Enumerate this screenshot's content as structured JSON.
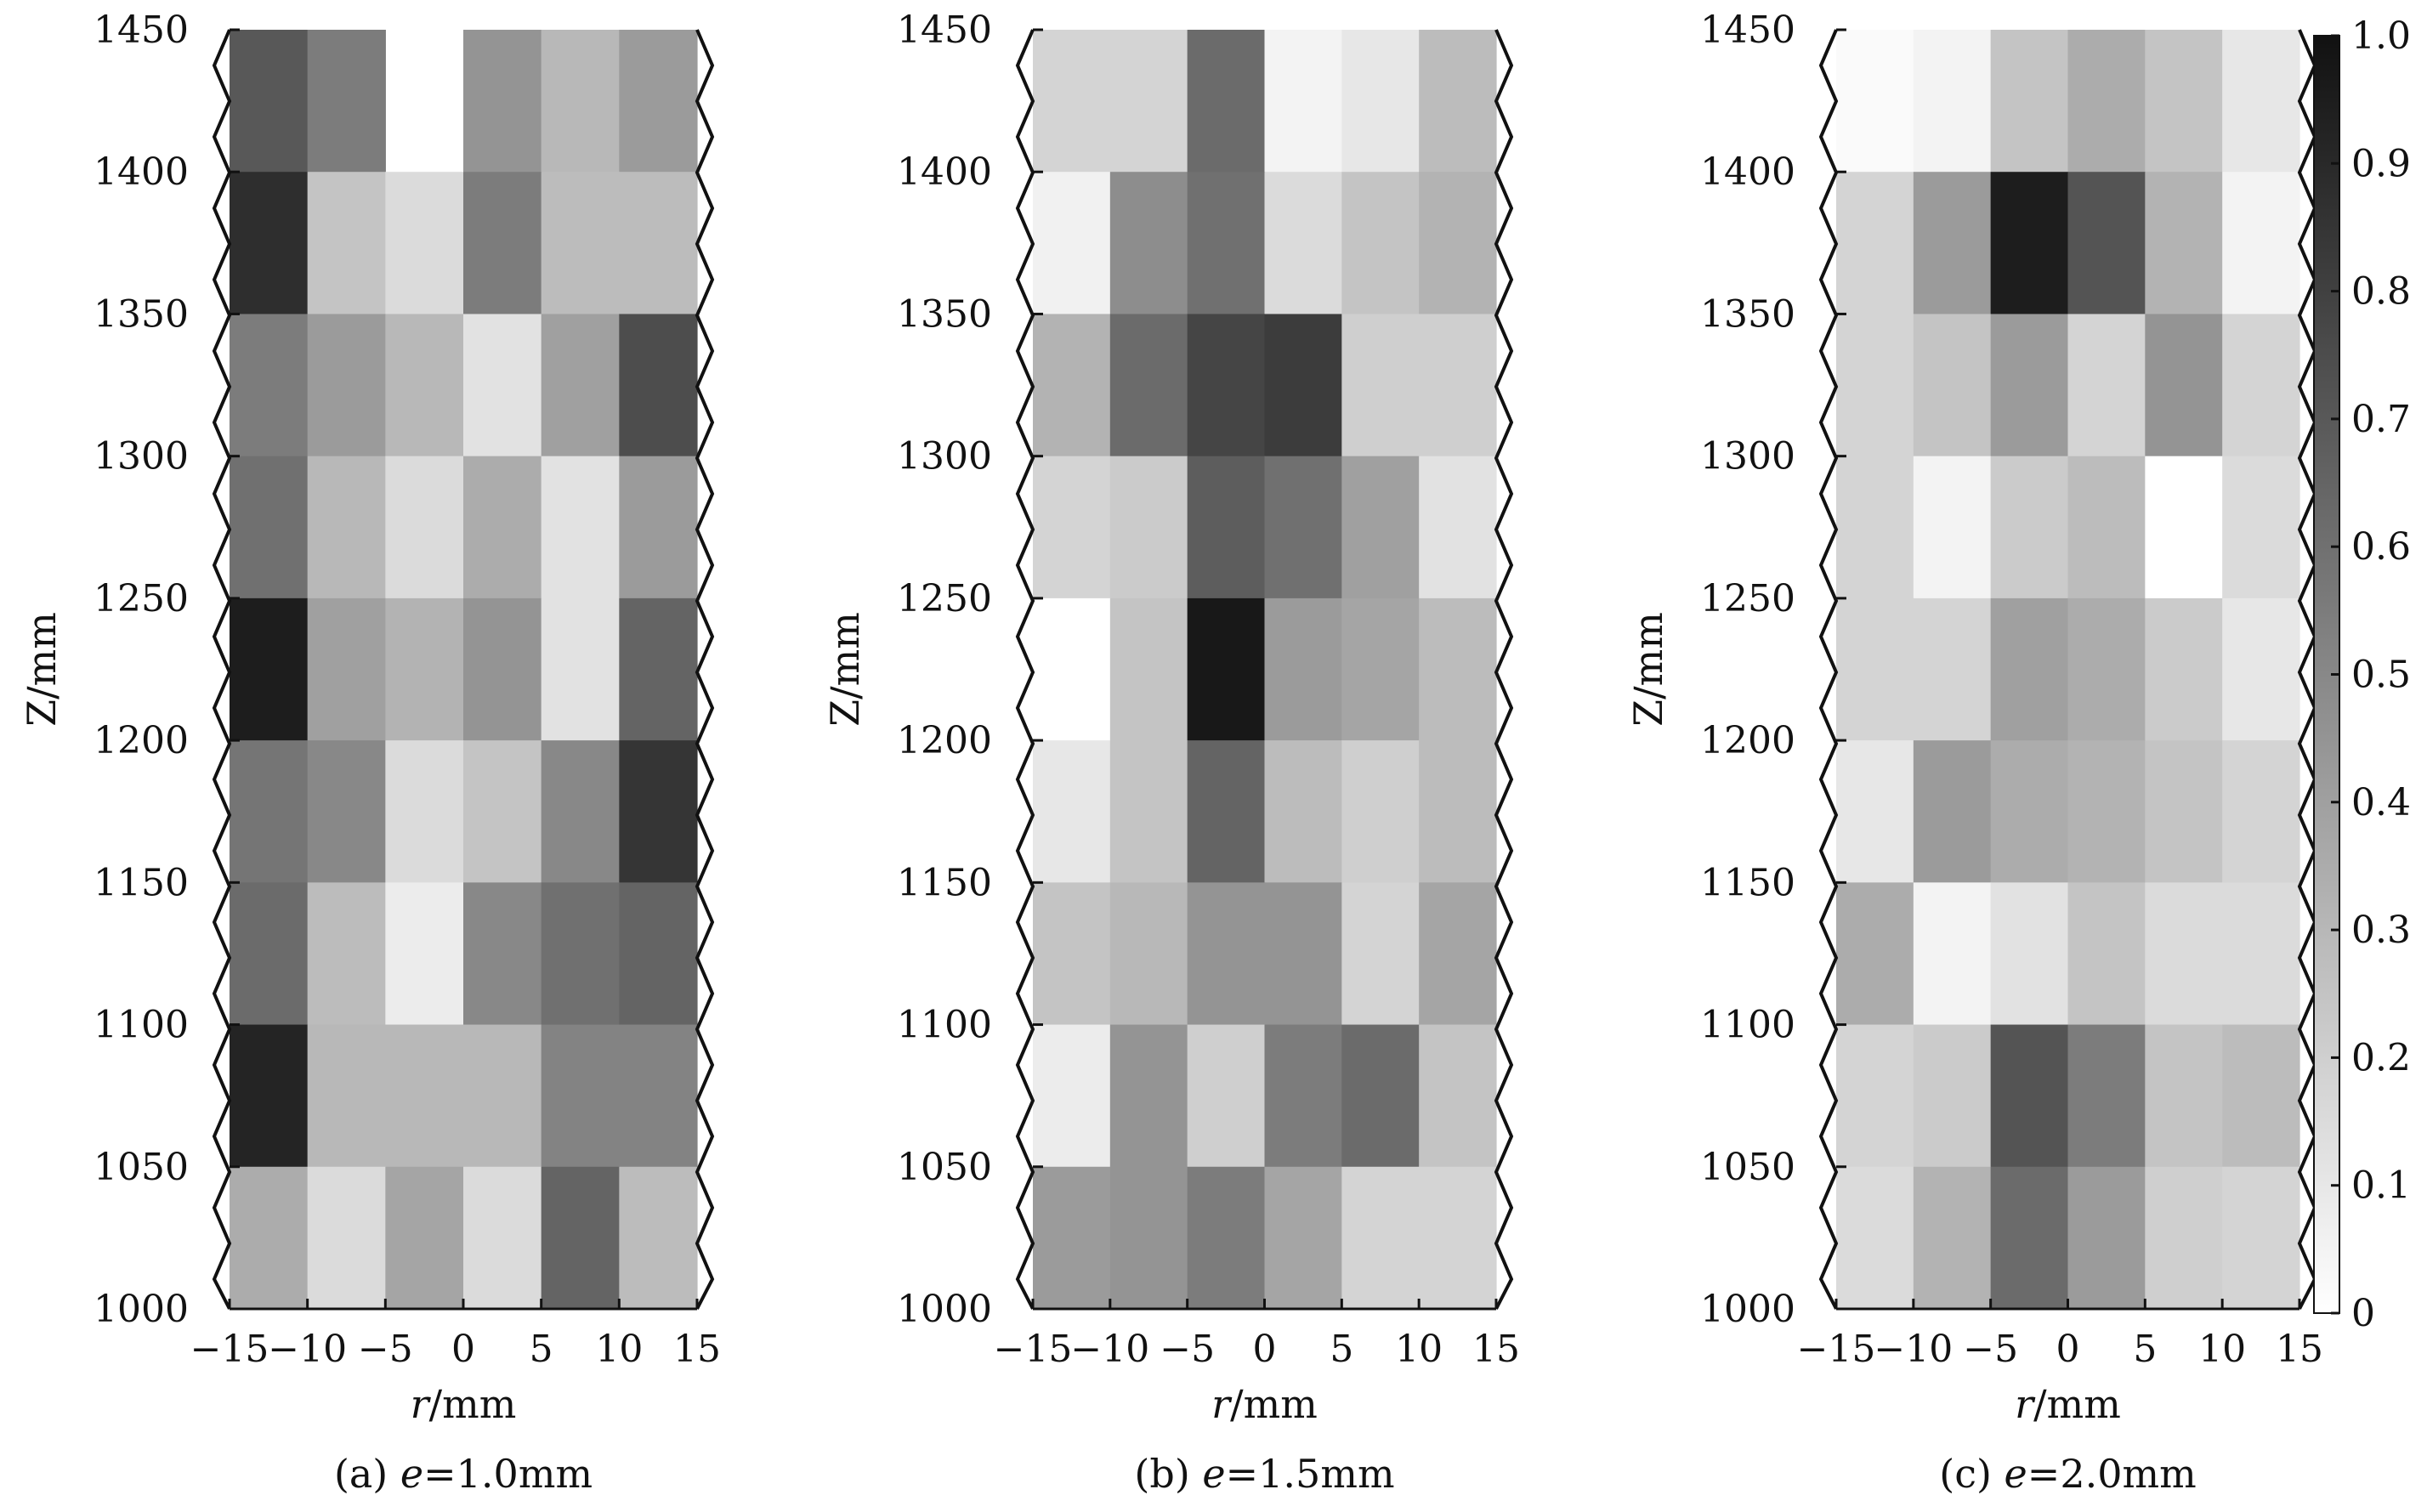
{
  "chart_data": [
    {
      "type": "heatmap",
      "caption_prefix": "(a) ",
      "caption_var": "e",
      "caption_value": "=1.0mm",
      "xlabel_var": "r",
      "xlabel_unit": "/mm",
      "ylabel": "Z/mm",
      "x_ticks": [
        "−15",
        "−10",
        "−5",
        "0",
        "5",
        "10",
        "15"
      ],
      "y_ticks": [
        "1450",
        "1400",
        "1350",
        "1300",
        "1250",
        "1200",
        "1150",
        "1100",
        "1050",
        "1000"
      ],
      "xlim": [
        -15,
        15
      ],
      "ylim": [
        1000,
        1450
      ],
      "z_rows_top_to_bottom": [
        [
          0.7,
          0.55,
          null,
          0.45,
          0.3,
          0.42
        ],
        [
          0.88,
          0.25,
          0.15,
          0.55,
          0.28,
          0.28
        ],
        [
          0.55,
          0.42,
          0.3,
          0.12,
          0.4,
          0.75
        ],
        [
          0.6,
          0.3,
          0.15,
          0.35,
          0.12,
          0.42
        ],
        [
          0.95,
          0.4,
          0.32,
          0.45,
          0.12,
          0.65
        ],
        [
          0.58,
          0.5,
          0.15,
          0.25,
          0.5,
          0.85
        ],
        [
          0.62,
          0.28,
          0.08,
          0.5,
          0.6,
          0.65
        ],
        [
          0.92,
          0.3,
          0.3,
          0.3,
          0.52,
          0.52
        ],
        [
          0.35,
          0.15,
          0.38,
          0.15,
          0.65,
          0.28
        ]
      ]
    },
    {
      "type": "heatmap",
      "caption_prefix": "(b) ",
      "caption_var": "e",
      "caption_value": "=1.5mm",
      "xlabel_var": "r",
      "xlabel_unit": "/mm",
      "ylabel": "Z/mm",
      "x_ticks": [
        "−15",
        "−10",
        "−5",
        "0",
        "5",
        "10",
        "15"
      ],
      "y_ticks": [
        "1450",
        "1400",
        "1350",
        "1300",
        "1250",
        "1200",
        "1150",
        "1100",
        "1050",
        "1000"
      ],
      "xlim": [
        -15,
        15
      ],
      "ylim": [
        1000,
        1450
      ],
      "z_rows_top_to_bottom": [
        [
          0.18,
          0.18,
          0.62,
          0.05,
          0.1,
          0.28
        ],
        [
          0.06,
          0.48,
          0.6,
          0.15,
          0.25,
          0.32
        ],
        [
          0.32,
          0.62,
          0.78,
          0.82,
          0.2,
          0.2
        ],
        [
          0.18,
          0.22,
          0.68,
          0.6,
          0.4,
          0.12
        ],
        [
          0.0,
          0.25,
          0.97,
          0.42,
          0.38,
          0.28
        ],
        [
          0.1,
          0.25,
          0.65,
          0.28,
          0.2,
          0.28
        ],
        [
          0.25,
          0.3,
          0.45,
          0.45,
          0.18,
          0.38
        ],
        [
          0.08,
          0.45,
          0.2,
          0.55,
          0.62,
          0.25
        ],
        [
          0.42,
          0.45,
          0.55,
          0.38,
          0.18,
          0.18
        ]
      ]
    },
    {
      "type": "heatmap",
      "caption_prefix": "(c) ",
      "caption_var": "e",
      "caption_value": "=2.0mm",
      "xlabel_var": "r",
      "xlabel_unit": "/mm",
      "ylabel": "Z/mm",
      "x_ticks": [
        "−15",
        "−10",
        "−5",
        "0",
        "5",
        "10",
        "15"
      ],
      "y_ticks": [
        "1450",
        "1400",
        "1350",
        "1300",
        "1250",
        "1200",
        "1150",
        "1100",
        "1050",
        "1000"
      ],
      "xlim": [
        -15,
        15
      ],
      "ylim": [
        1000,
        1450
      ],
      "z_rows_top_to_bottom": [
        [
          0.02,
          0.05,
          0.25,
          0.35,
          0.25,
          0.1
        ],
        [
          0.18,
          0.42,
          0.95,
          0.72,
          0.32,
          0.05
        ],
        [
          0.18,
          0.25,
          0.42,
          0.18,
          0.45,
          0.18
        ],
        [
          0.18,
          0.05,
          0.22,
          0.28,
          0.0,
          0.15
        ],
        [
          0.18,
          0.18,
          0.4,
          0.35,
          0.22,
          0.1
        ],
        [
          0.1,
          0.42,
          0.35,
          0.32,
          0.25,
          0.18
        ],
        [
          0.35,
          0.05,
          0.12,
          0.25,
          0.15,
          0.15
        ],
        [
          0.18,
          0.22,
          0.72,
          0.55,
          0.25,
          0.28
        ],
        [
          0.15,
          0.32,
          0.62,
          0.42,
          0.2,
          0.18
        ]
      ]
    }
  ],
  "colorbar": {
    "vmin": 0,
    "vmax": 1,
    "ticks": [
      "1.0",
      "0.9",
      "0.8",
      "0.7",
      "0.6",
      "0.5",
      "0.4",
      "0.3",
      "0.2",
      "0.1",
      "0"
    ],
    "colors": [
      "#ffffff",
      "#111111"
    ]
  }
}
